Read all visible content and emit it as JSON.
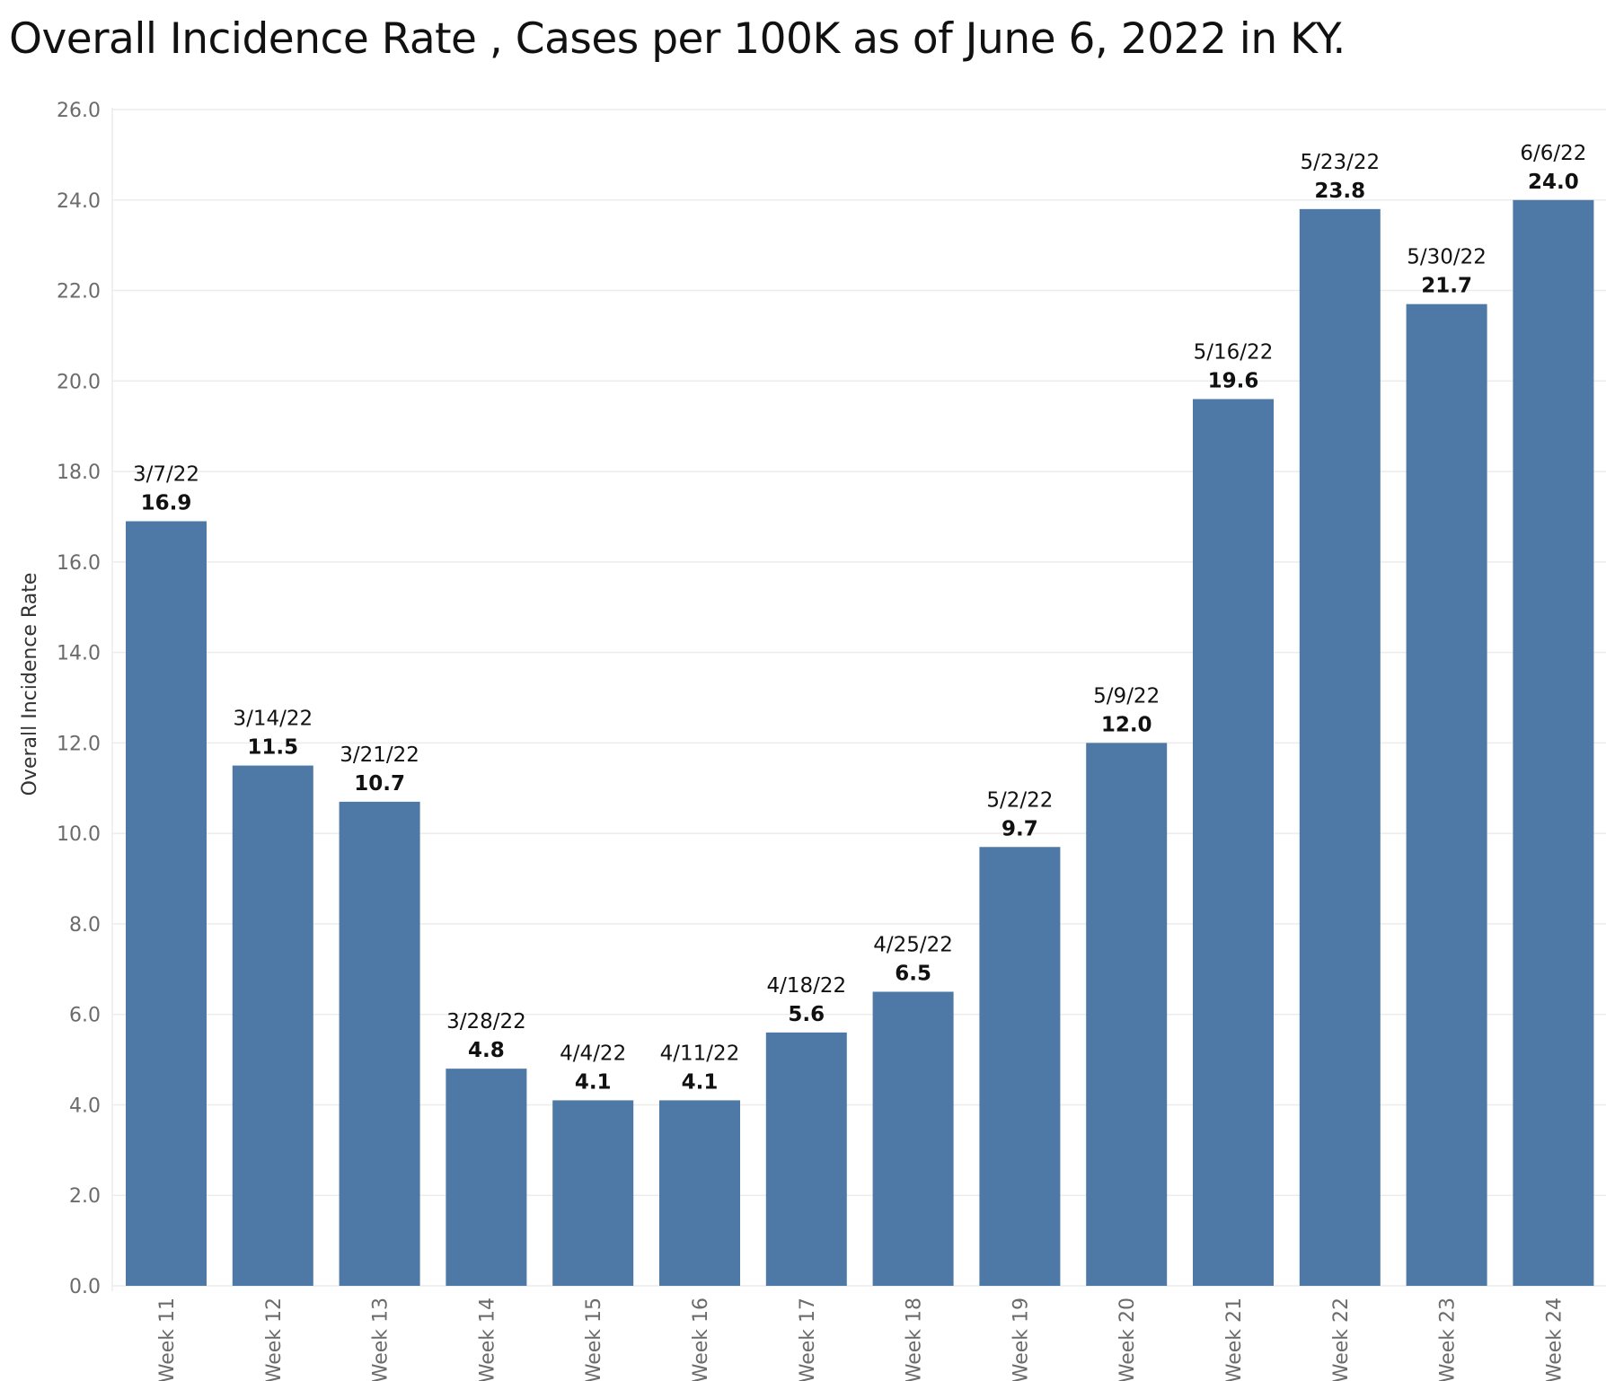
{
  "chart_data": {
    "type": "bar",
    "title": "Overall Incidence Rate , Cases per 100K as of June 6, 2022 in KY.",
    "ylabel": "Overall Incidence Rate",
    "xlabel": "",
    "categories": [
      "Week 11",
      "Week 12",
      "Week 13",
      "Week 14",
      "Week 15",
      "Week 16",
      "Week 17",
      "Week 18",
      "Week 19",
      "Week 20",
      "Week 21",
      "Week 22",
      "Week 23",
      "Week 24"
    ],
    "dates": [
      "3/7/22",
      "3/14/22",
      "3/21/22",
      "3/28/22",
      "4/4/22",
      "4/11/22",
      "4/18/22",
      "4/25/22",
      "5/2/22",
      "5/9/22",
      "5/16/22",
      "5/23/22",
      "5/30/22",
      "6/6/22"
    ],
    "values": [
      16.9,
      11.5,
      10.7,
      4.8,
      4.1,
      4.1,
      5.6,
      6.5,
      9.7,
      12.0,
      19.6,
      23.8,
      21.7,
      24.0
    ],
    "value_labels": [
      "16.9",
      "11.5",
      "10.7",
      "4.8",
      "4.1",
      "4.1",
      "5.6",
      "6.5",
      "9.7",
      "12.0",
      "19.6",
      "23.8",
      "21.7",
      "24.0"
    ],
    "ylim": [
      0,
      26
    ],
    "yticks": [
      "0.0",
      "2.0",
      "4.0",
      "6.0",
      "8.0",
      "10.0",
      "12.0",
      "14.0",
      "16.0",
      "18.0",
      "20.0",
      "22.0",
      "24.0",
      "26.0"
    ],
    "grid": true,
    "legend": "none",
    "bar_color": "#4e79a7"
  }
}
